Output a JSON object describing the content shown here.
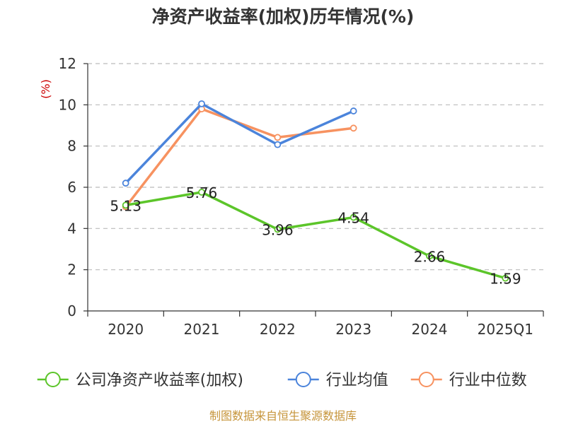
{
  "chart_data": {
    "type": "line",
    "title": "净资产收益率(加权)历年情况(%)",
    "ylabel": "(%)",
    "xlabel": "",
    "categories": [
      "2020",
      "2021",
      "2022",
      "2023",
      "2024",
      "2025Q1"
    ],
    "ylim": [
      0,
      12
    ],
    "yticks": [
      0,
      2,
      4,
      6,
      8,
      10,
      12
    ],
    "grid": true,
    "legend_position": "bottom",
    "series": [
      {
        "name": "公司净资产收益率(加权)",
        "color": "#5cc52a",
        "values": [
          5.13,
          5.76,
          3.96,
          4.54,
          2.66,
          1.59
        ],
        "show_labels": true
      },
      {
        "name": "行业均值",
        "color": "#4b84db",
        "values": [
          6.2,
          10.05,
          8.07,
          9.7,
          null,
          null
        ],
        "show_labels": false
      },
      {
        "name": "行业中位数",
        "color": "#f79260",
        "values": [
          5.05,
          9.8,
          8.42,
          8.87,
          null,
          null
        ],
        "show_labels": false
      }
    ]
  },
  "source_note": "制图数据来自恒生聚源数据库",
  "colors": {
    "ylabel": "#cc0000",
    "source_note": "#c6953b",
    "axis": "#333333",
    "grid": "#bbbbbb"
  }
}
